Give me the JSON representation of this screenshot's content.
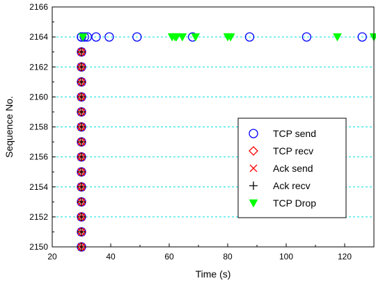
{
  "chart_data": {
    "type": "scatter",
    "xlabel": "Time (s)",
    "ylabel": "Sequence No.",
    "xlim": [
      20,
      130
    ],
    "ylim": [
      2150,
      2166
    ],
    "xticks": [
      20,
      40,
      60,
      80,
      100,
      120
    ],
    "yticks": [
      2150,
      2152,
      2154,
      2156,
      2158,
      2160,
      2162,
      2164,
      2166
    ],
    "xtick_labels": [
      "20",
      "40",
      "60",
      "80",
      "100",
      "120"
    ],
    "ytick_labels": [
      "2150",
      "2152",
      "2154",
      "2156",
      "2158",
      "2160",
      "2162",
      "2164",
      "2166"
    ],
    "grid": "horizontal dashed, cyan",
    "legend_position": "center-right",
    "series": [
      {
        "name": "TCP send",
        "marker": "open-circle",
        "color": "#0000ff",
        "x": [
          30,
          30,
          30,
          30,
          30,
          30,
          30,
          30,
          30,
          30,
          30,
          30,
          30,
          30,
          30,
          30,
          31,
          32,
          35,
          39.5,
          49,
          68,
          87.5,
          107,
          126
        ],
        "y": [
          2150,
          2151,
          2152,
          2153,
          2154,
          2155,
          2156,
          2157,
          2158,
          2159,
          2160,
          2161,
          2162,
          2163,
          2164,
          2164,
          2164,
          2164,
          2164,
          2164,
          2164,
          2164,
          2164,
          2164,
          2164
        ]
      },
      {
        "name": "TCP recv",
        "marker": "open-diamond",
        "color": "#ff0000",
        "x": [
          30,
          30,
          30,
          30,
          30,
          30,
          30,
          30,
          30,
          30,
          30,
          30,
          30,
          30
        ],
        "y": [
          2150,
          2151,
          2152,
          2153,
          2154,
          2155,
          2156,
          2157,
          2158,
          2159,
          2160,
          2161,
          2162,
          2163
        ]
      },
      {
        "name": "Ack send",
        "marker": "x-cross",
        "color": "#ff0000",
        "x": [
          30,
          30,
          30,
          30,
          30,
          30,
          30,
          30,
          30,
          30,
          30,
          30,
          30,
          30
        ],
        "y": [
          2150,
          2151,
          2152,
          2153,
          2154,
          2155,
          2156,
          2157,
          2158,
          2159,
          2160,
          2161,
          2162,
          2163
        ]
      },
      {
        "name": "Ack recv",
        "marker": "plus",
        "color": "#000000",
        "x": [
          30,
          30,
          30,
          30,
          30,
          30,
          30,
          30,
          30,
          30,
          30,
          30,
          30,
          30
        ],
        "y": [
          2150,
          2151,
          2152,
          2153,
          2154,
          2155,
          2156,
          2157,
          2158,
          2159,
          2160,
          2161,
          2162,
          2163
        ]
      },
      {
        "name": "TCP Drop",
        "marker": "filled-triangle-down",
        "color": "#00ff00",
        "x": [
          30.5,
          61,
          62,
          62.5,
          64.5,
          69,
          80,
          81,
          117.5,
          130
        ],
        "y": [
          2164,
          2164,
          2164,
          2164,
          2164,
          2164,
          2164,
          2164,
          2164,
          2164
        ]
      }
    ]
  }
}
